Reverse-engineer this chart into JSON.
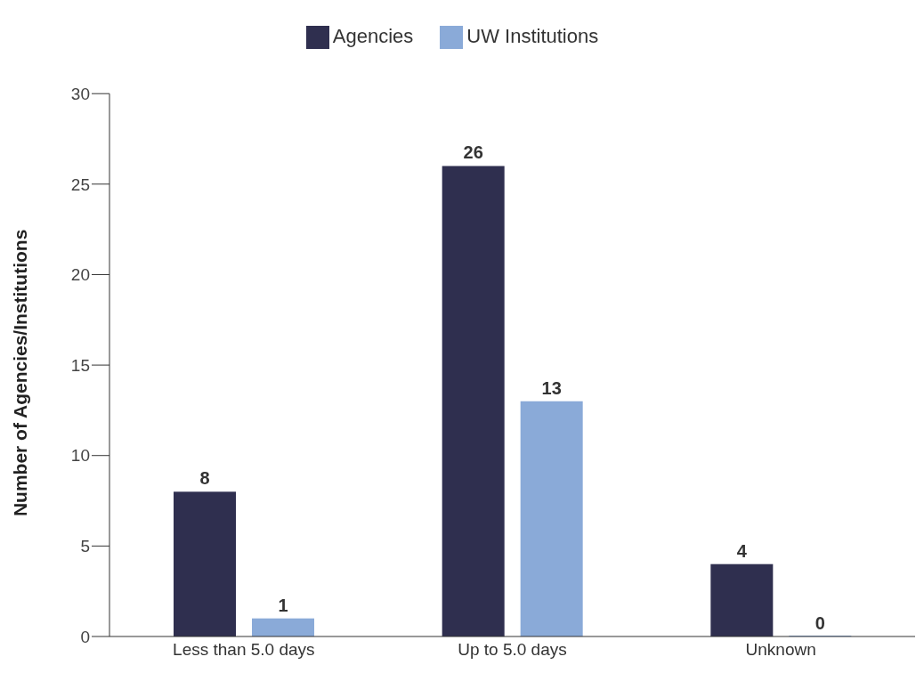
{
  "chart_data": {
    "type": "bar",
    "ylabel": "Number of Agencies/Institutions",
    "categories": [
      "Less than 5.0 days",
      "Up to 5.0 days",
      "Unknown"
    ],
    "series": [
      {
        "name": "Agencies",
        "color": "#2f2f4f",
        "values": [
          8,
          26,
          4
        ]
      },
      {
        "name": "UW Institutions",
        "color": "#8aaad8",
        "values": [
          1,
          13,
          0
        ]
      }
    ],
    "ylim": [
      0,
      30
    ],
    "yticks": [
      0,
      5,
      10,
      15,
      20,
      25,
      30
    ],
    "grid": false,
    "legend": "top",
    "data_labels": true
  }
}
